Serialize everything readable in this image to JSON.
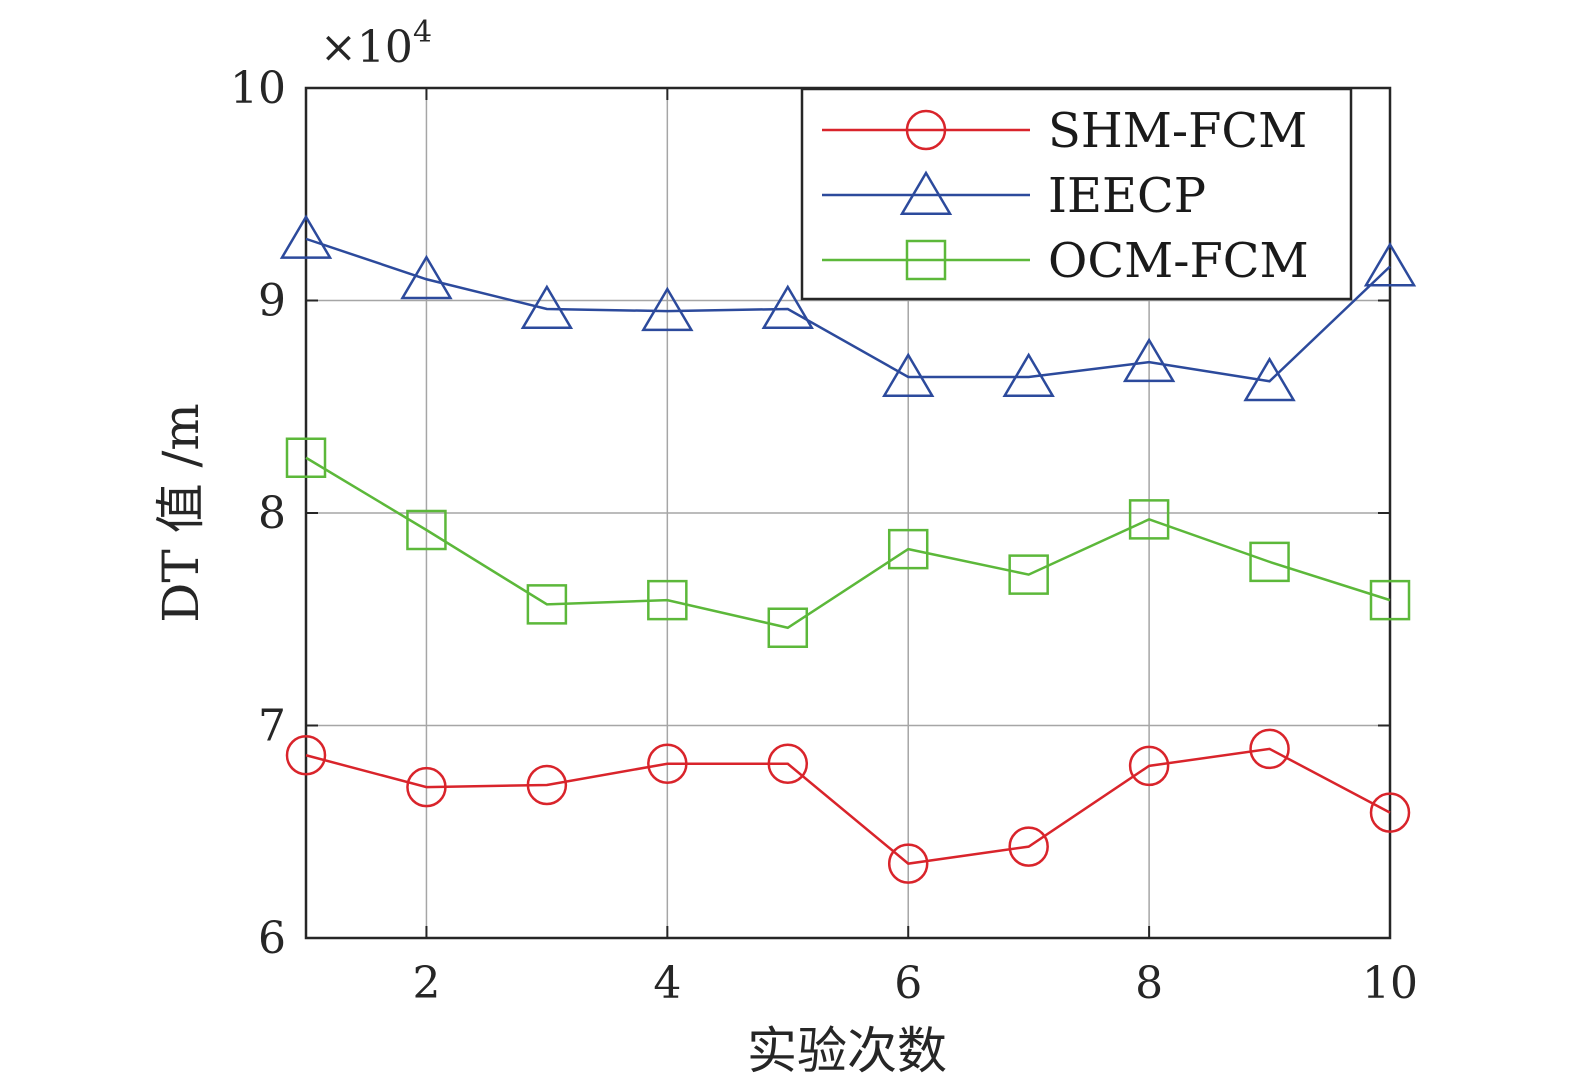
{
  "chart_data": {
    "type": "line",
    "xlabel": "实验次数",
    "ylabel": "DT 值 /m",
    "y_multiplier": "×10",
    "y_exponent": "4",
    "xlim": [
      1,
      10
    ],
    "ylim": [
      6,
      10
    ],
    "x_ticks": [
      2,
      4,
      6,
      8,
      10
    ],
    "x_tick_labels": [
      "2",
      "4",
      "6",
      "8",
      "10"
    ],
    "y_ticks": [
      6,
      7,
      8,
      9,
      10
    ],
    "y_tick_labels": [
      "6",
      "7",
      "8",
      "9",
      "10"
    ],
    "grid": true,
    "legend_position": "top-right",
    "x": [
      1,
      2,
      3,
      4,
      5,
      6,
      7,
      8,
      9,
      10
    ],
    "series": [
      {
        "name": "SHM-FCM",
        "color": "#d9242b",
        "marker": "circle",
        "values": [
          6.86,
          6.71,
          6.72,
          6.82,
          6.82,
          6.35,
          6.43,
          6.81,
          6.89,
          6.59
        ]
      },
      {
        "name": "IEECP",
        "color": "#2c4a9c",
        "marker": "triangle",
        "values": [
          9.29,
          9.1,
          8.96,
          8.95,
          8.96,
          8.64,
          8.64,
          8.71,
          8.62,
          9.16
        ]
      },
      {
        "name": "OCM-FCM",
        "color": "#5cb83a",
        "marker": "square",
        "values": [
          8.26,
          7.92,
          7.57,
          7.59,
          7.46,
          7.83,
          7.71,
          7.97,
          7.77,
          7.59
        ]
      }
    ]
  }
}
